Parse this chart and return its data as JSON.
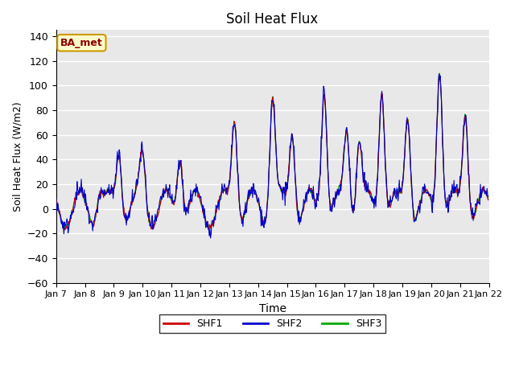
{
  "title": "Soil Heat Flux",
  "ylabel": "Soil Heat Flux (W/m2)",
  "xlabel": "Time",
  "xlabels": [
    "Jan 7",
    "Jan 8",
    "Jan 9",
    "Jan 10",
    "Jan 11",
    "Jan 12",
    "Jan 13",
    "Jan 14",
    "Jan 15",
    "Jan 16",
    "Jan 17",
    "Jan 18",
    "Jan 19",
    "Jan 20",
    "Jan 21",
    "Jan 22"
  ],
  "ylim": [
    -60,
    145
  ],
  "yticks": [
    -60,
    -40,
    -20,
    0,
    20,
    40,
    60,
    80,
    100,
    120,
    140
  ],
  "color_shf1": "#cc0000",
  "color_shf2": "#0000cc",
  "color_shf3": "#00aa00",
  "bg_color": "#e8e8e8",
  "legend_label": "BA_met",
  "legend_bg": "#ffffcc",
  "legend_border": "#cc9900"
}
